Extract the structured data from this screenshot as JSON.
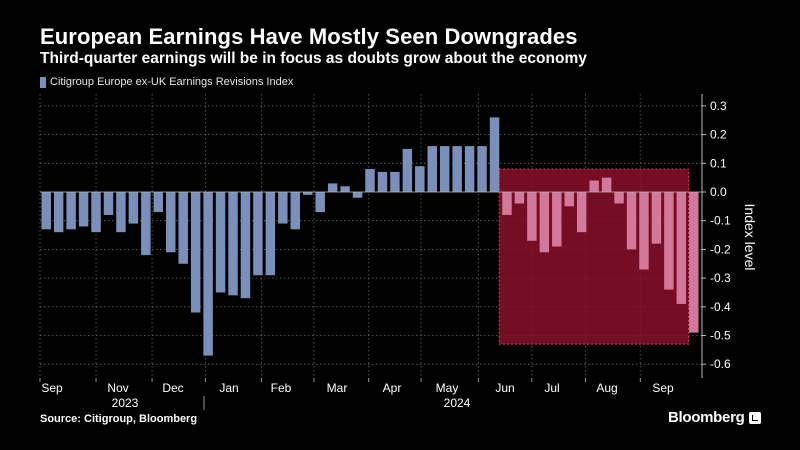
{
  "brand": "Bloomberg",
  "source": "Source: Citigroup, Bloomberg",
  "colors": {
    "bar": "#7a90ba",
    "highlight_bar": "#d2789a",
    "highlight_fill": "#8a0f2c",
    "highlight_border": "#e23c5e",
    "grid": "#6a6a6a",
    "text": "#ffffff"
  },
  "chart_data": {
    "type": "bar",
    "title": "European Earnings Have Mostly Seen Downgrades",
    "subtitle": "Third-quarter earnings will be in focus as doubts grow about the economy",
    "legend": [
      "Citigroup Europe ex-UK Earnings Revisions Index"
    ],
    "ylabel": "Index level",
    "ylim": [
      -0.65,
      0.35
    ],
    "yticks": [
      "0.3",
      "0.2",
      "0.1",
      "0.0",
      "-0.1",
      "-0.2",
      "-0.3",
      "-0.4",
      "-0.5",
      "-0.6"
    ],
    "x_month_labels": [
      "Sep",
      "Nov",
      "Dec",
      "Jan",
      "Feb",
      "Mar",
      "Apr",
      "May",
      "Jun",
      "Jul",
      "Aug",
      "Sep"
    ],
    "x_year_labels": [
      "2023",
      "2024"
    ],
    "highlight_region": {
      "from_index": 37,
      "to_index": 52,
      "y_range": [
        -0.53,
        0.08
      ]
    },
    "values": [
      -0.13,
      -0.14,
      -0.13,
      -0.12,
      -0.14,
      -0.08,
      -0.14,
      -0.11,
      -0.22,
      -0.07,
      -0.21,
      -0.25,
      -0.42,
      -0.57,
      -0.35,
      -0.36,
      -0.37,
      -0.29,
      -0.29,
      -0.11,
      -0.13,
      -0.01,
      -0.07,
      0.03,
      0.02,
      -0.02,
      0.08,
      0.07,
      0.07,
      0.15,
      0.09,
      0.16,
      0.16,
      0.16,
      0.16,
      0.16,
      0.26,
      -0.08,
      -0.04,
      -0.17,
      -0.21,
      -0.19,
      -0.05,
      -0.14,
      0.04,
      0.05,
      -0.04,
      -0.2,
      -0.27,
      -0.18,
      -0.34,
      -0.39,
      -0.49
    ]
  }
}
